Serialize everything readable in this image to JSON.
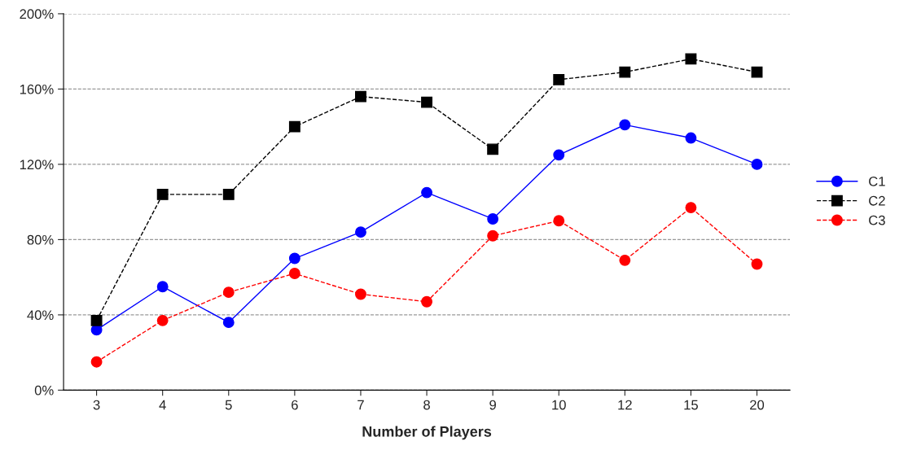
{
  "chart_data": {
    "type": "line",
    "xlabel": "Number of Players",
    "categories": [
      "3",
      "4",
      "5",
      "6",
      "7",
      "8",
      "9",
      "10",
      "12",
      "15",
      "20"
    ],
    "series": [
      {
        "name": "C1",
        "color": "#0000ff",
        "marker": "circle",
        "line_style": "solid",
        "values": [
          32,
          55,
          36,
          70,
          84,
          105,
          91,
          125,
          141,
          134,
          120
        ]
      },
      {
        "name": "C2",
        "color": "#000000",
        "marker": "square",
        "line_style": "dashed",
        "values": [
          37,
          104,
          104,
          140,
          156,
          153,
          128,
          165,
          169,
          176,
          169
        ]
      },
      {
        "name": "C3",
        "color": "#ff0000",
        "marker": "circle",
        "line_style": "dashed",
        "values": [
          15,
          37,
          52,
          62,
          51,
          47,
          82,
          90,
          69,
          97,
          67
        ]
      }
    ],
    "ylim": [
      0,
      200
    ],
    "yticks": [
      {
        "value": 0,
        "label": "0%"
      },
      {
        "value": 40,
        "label": "40%"
      },
      {
        "value": 80,
        "label": "80%"
      },
      {
        "value": 120,
        "label": "120%"
      },
      {
        "value": 160,
        "label": "160%"
      },
      {
        "value": 200,
        "label": "200%"
      }
    ],
    "grid": "y",
    "legend": "right"
  }
}
